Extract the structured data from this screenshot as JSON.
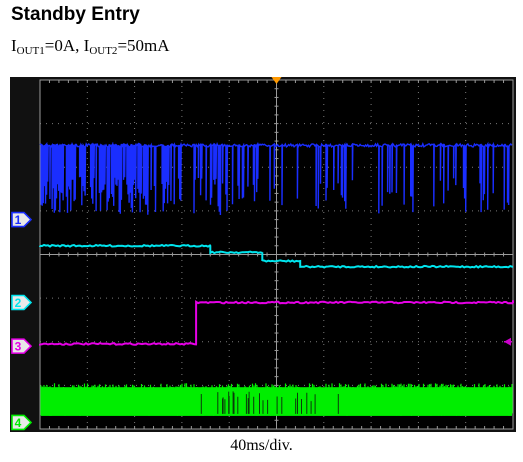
{
  "title": "Standby Entry",
  "subtitle": {
    "i1_base": "I",
    "i1_sub": "OUT1",
    "i1_value": "=0A, ",
    "i2_base": "I",
    "i2_sub": "OUT2",
    "i2_value": "=50mA"
  },
  "caption": "40ms/div.",
  "chart_data": {
    "type": "line",
    "title": "Standby Entry",
    "xlabel": "40ms/div.",
    "ylabel": "",
    "grid": true,
    "x_divisions": 10,
    "y_divisions": 8,
    "x_unit": "div",
    "y_unit": "div",
    "xlim": [
      0,
      10
    ],
    "ylim": [
      0,
      8
    ],
    "background": "#000000",
    "grid_color": "#7a7a7a",
    "trigger_marker": {
      "x": 5.0,
      "color": "#ff9900"
    },
    "trigger_level_marker": {
      "channel": "3",
      "y": 2.0,
      "color": "#cc00cc"
    },
    "series": [
      {
        "marker": "1",
        "color": "#1a2eff",
        "ground_y": 4.8,
        "level_y": 6.5,
        "style": "spiky_down",
        "spike_depth_y": 4.9
      },
      {
        "marker": "2",
        "color": "#00e5ee",
        "ground_y": 2.9,
        "style": "steps",
        "steps": [
          [
            0.0,
            4.2
          ],
          [
            3.6,
            4.05
          ],
          [
            4.7,
            3.85
          ],
          [
            5.5,
            3.72
          ],
          [
            10.0,
            3.72
          ]
        ]
      },
      {
        "marker": "3",
        "color": "#e600e6",
        "ground_y": 1.9,
        "style": "steps",
        "steps": [
          [
            0.0,
            1.95
          ],
          [
            3.3,
            1.95
          ],
          [
            3.3,
            2.9
          ],
          [
            10.0,
            2.95
          ]
        ]
      },
      {
        "marker": "4",
        "color": "#00ee00",
        "ground_y": 0.15,
        "style": "noise_band",
        "band": [
          0.3,
          1.05
        ]
      }
    ]
  }
}
